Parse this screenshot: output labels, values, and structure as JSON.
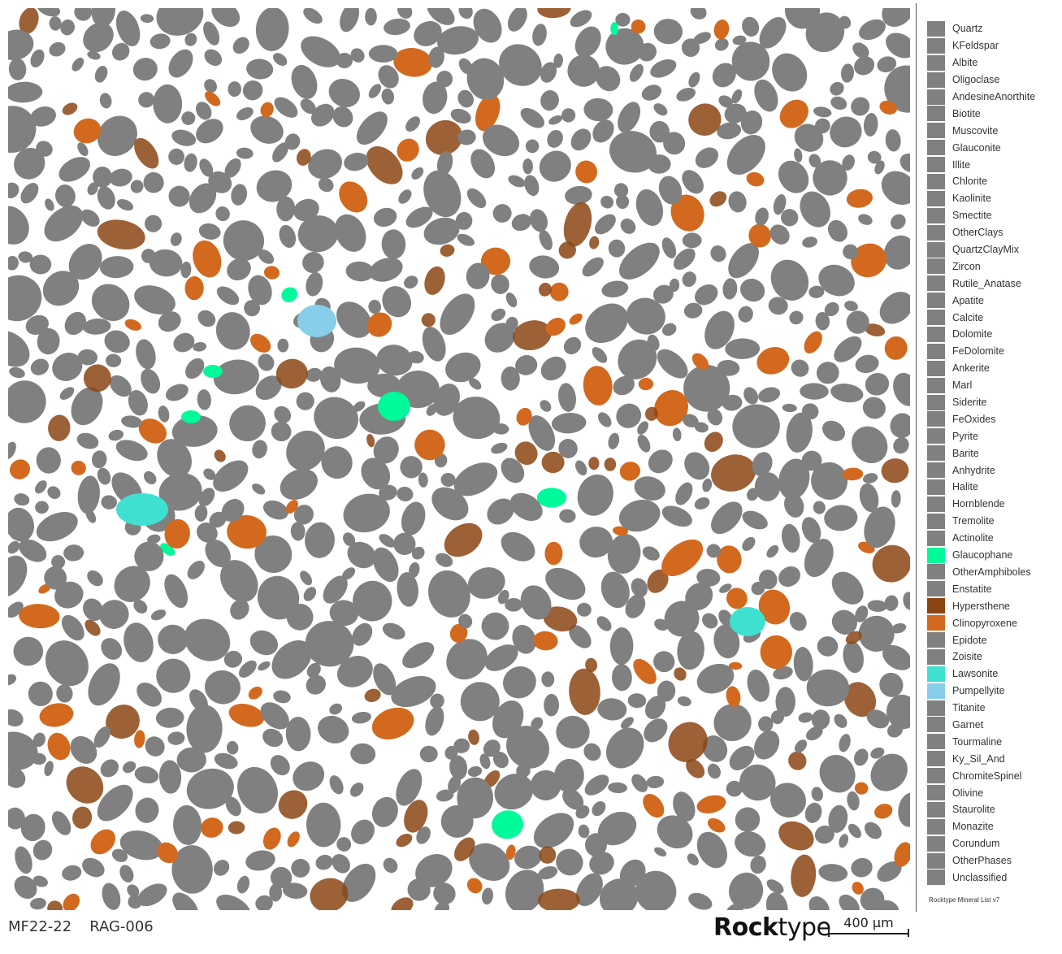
{
  "sample": {
    "id": "MF22-22",
    "code": "RAG-006"
  },
  "brand": {
    "bold": "Rock",
    "light": "type"
  },
  "scale_bar": {
    "label": "400 µm"
  },
  "legend": {
    "footer": "Rocktype Mineral List v7",
    "items": [
      {
        "label": "Quartz",
        "color": "#808080"
      },
      {
        "label": "KFeldspar",
        "color": "#808080"
      },
      {
        "label": "Albite",
        "color": "#808080"
      },
      {
        "label": "Oligoclase",
        "color": "#808080"
      },
      {
        "label": "AndesineAnorthite",
        "color": "#808080"
      },
      {
        "label": "Biotite",
        "color": "#808080"
      },
      {
        "label": "Muscovite",
        "color": "#808080"
      },
      {
        "label": "Glauconite",
        "color": "#808080"
      },
      {
        "label": "Illite",
        "color": "#808080"
      },
      {
        "label": "Chlorite",
        "color": "#808080"
      },
      {
        "label": "Kaolinite",
        "color": "#808080"
      },
      {
        "label": "Smectite",
        "color": "#808080"
      },
      {
        "label": "OtherClays",
        "color": "#808080"
      },
      {
        "label": "QuartzClayMix",
        "color": "#808080"
      },
      {
        "label": "Zircon",
        "color": "#808080"
      },
      {
        "label": "Rutile_Anatase",
        "color": "#808080"
      },
      {
        "label": "Apatite",
        "color": "#808080"
      },
      {
        "label": "Calcite",
        "color": "#808080"
      },
      {
        "label": "Dolomite",
        "color": "#808080"
      },
      {
        "label": "FeDolomite",
        "color": "#808080"
      },
      {
        "label": "Ankerite",
        "color": "#808080"
      },
      {
        "label": "Marl",
        "color": "#808080"
      },
      {
        "label": "Siderite",
        "color": "#808080"
      },
      {
        "label": "FeOxides",
        "color": "#808080"
      },
      {
        "label": "Pyrite",
        "color": "#808080"
      },
      {
        "label": "Barite",
        "color": "#808080"
      },
      {
        "label": "Anhydrite",
        "color": "#808080"
      },
      {
        "label": "Halite",
        "color": "#808080"
      },
      {
        "label": "Hornblende",
        "color": "#808080"
      },
      {
        "label": "Tremolite",
        "color": "#808080"
      },
      {
        "label": "Actinolite",
        "color": "#808080"
      },
      {
        "label": "Glaucophane",
        "color": "#00FA9A"
      },
      {
        "label": "OtherAmphiboles",
        "color": "#808080"
      },
      {
        "label": "Enstatite",
        "color": "#808080"
      },
      {
        "label": "Hypersthene",
        "color": "#8B4513"
      },
      {
        "label": "Clinopyroxene",
        "color": "#D2691E"
      },
      {
        "label": "Epidote",
        "color": "#808080"
      },
      {
        "label": "Zoisite",
        "color": "#808080"
      },
      {
        "label": "Lawsonite",
        "color": "#40E0D0"
      },
      {
        "label": "Pumpellyite",
        "color": "#87CEEB"
      },
      {
        "label": "Titanite",
        "color": "#808080"
      },
      {
        "label": "Garnet",
        "color": "#808080"
      },
      {
        "label": "Tourmaline",
        "color": "#808080"
      },
      {
        "label": "Ky_Sil_And",
        "color": "#808080"
      },
      {
        "label": "ChromiteSpinel",
        "color": "#808080"
      },
      {
        "label": "Olivine",
        "color": "#808080"
      },
      {
        "label": "Staurolite",
        "color": "#808080"
      },
      {
        "label": "Monazite",
        "color": "#808080"
      },
      {
        "label": "Corundum",
        "color": "#808080"
      },
      {
        "label": "OtherPhases",
        "color": "#808080"
      },
      {
        "label": "Unclassified",
        "color": "#808080"
      }
    ]
  },
  "grain_map": {
    "background": "#FFFFFF",
    "dominant_color": "#808080",
    "accent_colors": [
      "#D2691E",
      "#8B4513",
      "#00FA9A",
      "#40E0D0",
      "#87CEEB"
    ]
  }
}
